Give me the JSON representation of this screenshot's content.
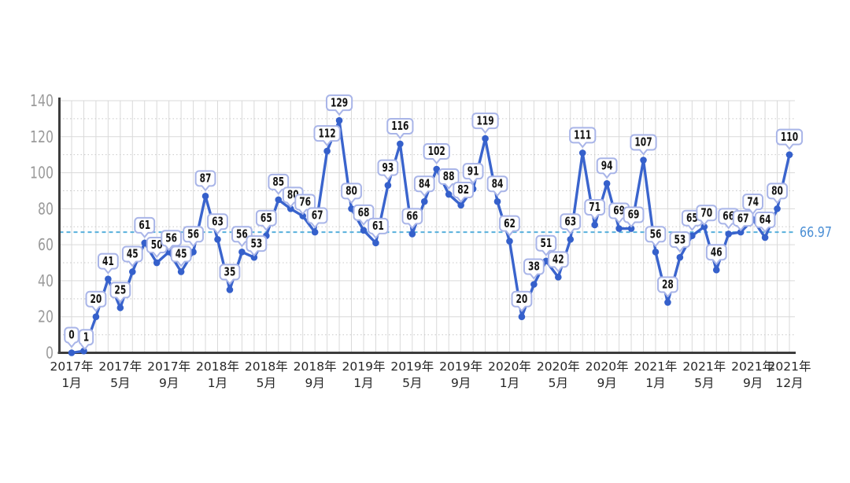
{
  "chart_data": {
    "type": "line",
    "title": "",
    "x": [
      "2017-01",
      "2017-02",
      "2017-03",
      "2017-04",
      "2017-05",
      "2017-06",
      "2017-07",
      "2017-08",
      "2017-09",
      "2017-10",
      "2017-11",
      "2017-12",
      "2018-01",
      "2018-02",
      "2018-03",
      "2018-04",
      "2018-05",
      "2018-06",
      "2018-07",
      "2018-08",
      "2018-09",
      "2018-10",
      "2018-11",
      "2018-12",
      "2019-01",
      "2019-02",
      "2019-03",
      "2019-04",
      "2019-05",
      "2019-06",
      "2019-07",
      "2019-08",
      "2019-09",
      "2019-10",
      "2019-11",
      "2019-12",
      "2020-01",
      "2020-02",
      "2020-03",
      "2020-04",
      "2020-05",
      "2020-06",
      "2020-07",
      "2020-08",
      "2020-09",
      "2020-10",
      "2020-11",
      "2020-12",
      "2021-01",
      "2021-02",
      "2021-03",
      "2021-04",
      "2021-05",
      "2021-06",
      "2021-07",
      "2021-08",
      "2021-09",
      "2021-10",
      "2021-11",
      "2021-12"
    ],
    "values": [
      0,
      1,
      20,
      41,
      25,
      45,
      61,
      50,
      56,
      45,
      56,
      87,
      63,
      35,
      56,
      53,
      65,
      85,
      80,
      76,
      67,
      112,
      129,
      80,
      68,
      61,
      93,
      116,
      66,
      84,
      102,
      88,
      82,
      91,
      119,
      84,
      62,
      20,
      38,
      51,
      42,
      63,
      111,
      71,
      94,
      69,
      69,
      107,
      56,
      28,
      53,
      65,
      70,
      46,
      66,
      67,
      74,
      64,
      80,
      110
    ],
    "point_labels_visible": true,
    "x_ticks": [
      {
        "index": 0,
        "line1": "2017年",
        "line2": "1月"
      },
      {
        "index": 4,
        "line1": "2017年",
        "line2": "5月"
      },
      {
        "index": 8,
        "line1": "2017年",
        "line2": "9月"
      },
      {
        "index": 12,
        "line1": "2018年",
        "line2": "1月"
      },
      {
        "index": 16,
        "line1": "2018年",
        "line2": "5月"
      },
      {
        "index": 20,
        "line1": "2018年",
        "line2": "9月"
      },
      {
        "index": 24,
        "line1": "2019年",
        "line2": "1月"
      },
      {
        "index": 28,
        "line1": "2019年",
        "line2": "5月"
      },
      {
        "index": 32,
        "line1": "2019年",
        "line2": "9月"
      },
      {
        "index": 36,
        "line1": "2020年",
        "line2": "1月"
      },
      {
        "index": 40,
        "line1": "2020年",
        "line2": "5月"
      },
      {
        "index": 44,
        "line1": "2020年",
        "line2": "9月"
      },
      {
        "index": 48,
        "line1": "2021年",
        "line2": "1月"
      },
      {
        "index": 52,
        "line1": "2021年",
        "line2": "5月"
      },
      {
        "index": 56,
        "line1": "2021年",
        "line2": "9月"
      },
      {
        "index": 59,
        "line1": "2021年",
        "line2": "12月"
      }
    ],
    "y_ticks": [
      0,
      20,
      40,
      60,
      80,
      100,
      120,
      140
    ],
    "ylim": [
      0,
      140
    ],
    "average_line": {
      "value": 66.97,
      "label": "66.97",
      "style": "dashed"
    },
    "grid": {
      "vertical_monthly": true,
      "horizontal_major_step": 20,
      "horizontal_minor_step": 10,
      "minor_style": "dotted"
    },
    "legend": "none",
    "xlabel": "",
    "ylabel": "",
    "colors": {
      "background": "#ffffff",
      "line": "#3a64cd",
      "point": "#3560cb",
      "label_border": "#a9b5e8",
      "label_fill": "#ffffff",
      "label_text": "#141414",
      "average_line": "#58b0dc",
      "average_text": "#4b8fd5",
      "axis": "#3d3d3d",
      "grid_major": "#d9d9d9",
      "grid_minor": "#c9c9c9",
      "y_tick_text": "#9b9b9b",
      "x_tick_text": "#262626"
    }
  }
}
